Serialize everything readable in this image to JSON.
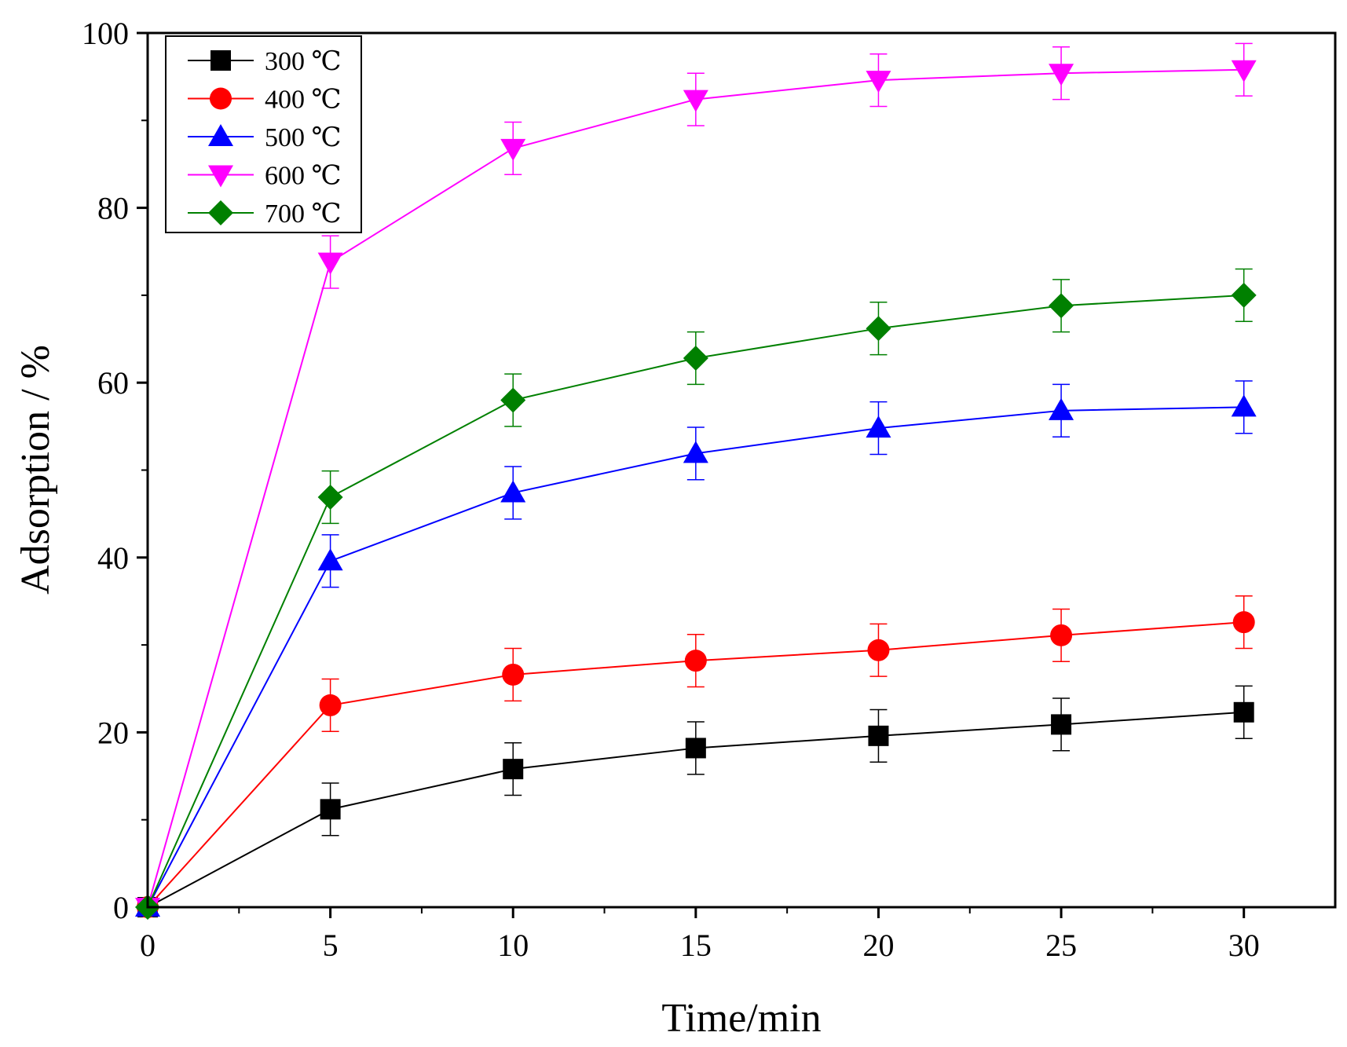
{
  "chart_data": {
    "type": "line",
    "title": "",
    "xlabel": "Time/min",
    "ylabel": "Adsorption / %",
    "xlim": [
      0,
      32.5
    ],
    "ylim": [
      0,
      100
    ],
    "xticks": [
      0,
      5,
      10,
      15,
      20,
      25,
      30
    ],
    "yticks": [
      0,
      20,
      40,
      60,
      80,
      100
    ],
    "grid": false,
    "legend_position": "top-left",
    "x": [
      0,
      5,
      10,
      15,
      20,
      25,
      30
    ],
    "series": [
      {
        "name": "300 ℃",
        "color": "#000000",
        "marker": "square",
        "values": [
          0,
          11.2,
          15.8,
          18.2,
          19.6,
          20.9,
          22.3
        ],
        "errors": [
          0,
          3,
          3,
          3,
          3,
          3,
          3
        ]
      },
      {
        "name": "400 ℃",
        "color": "#ff0000",
        "marker": "circle",
        "values": [
          0,
          23.1,
          26.6,
          28.2,
          29.4,
          31.1,
          32.6
        ],
        "errors": [
          0,
          3,
          3,
          3,
          3,
          3,
          3
        ]
      },
      {
        "name": "500 ℃",
        "color": "#0000ff",
        "marker": "triangle-up",
        "values": [
          0,
          39.6,
          47.4,
          51.9,
          54.8,
          56.8,
          57.2
        ],
        "errors": [
          0,
          3,
          3,
          3,
          3,
          3,
          3
        ]
      },
      {
        "name": "600 ℃",
        "color": "#ff00ff",
        "marker": "triangle-down",
        "values": [
          0,
          73.8,
          86.8,
          92.4,
          94.6,
          95.4,
          95.8
        ],
        "errors": [
          0,
          3,
          3,
          3,
          3,
          3,
          3
        ]
      },
      {
        "name": "700 ℃",
        "color": "#008000",
        "marker": "diamond",
        "values": [
          0,
          46.9,
          58.0,
          62.8,
          66.2,
          68.8,
          70.0
        ],
        "errors": [
          0,
          3,
          3,
          3,
          3,
          3,
          3
        ]
      }
    ]
  }
}
